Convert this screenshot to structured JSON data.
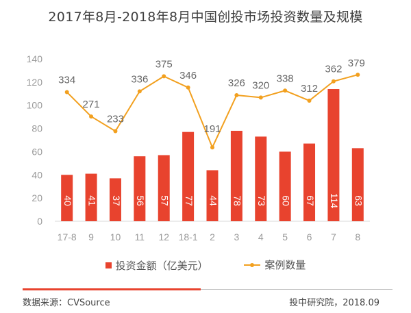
{
  "chart_data": {
    "type": "bar",
    "title": "2017年8月-2018年8月中国创投市场投资数量及规模",
    "categories": [
      "17-8",
      "9",
      "10",
      "11",
      "12",
      "18-1",
      "2",
      "3",
      "4",
      "5",
      "6",
      "7",
      "8"
    ],
    "series": [
      {
        "name": "投资金额（亿美元）",
        "type": "bar",
        "values": [
          40,
          41,
          37,
          56,
          57,
          77,
          44,
          78,
          73,
          60,
          67,
          114,
          63
        ]
      },
      {
        "name": "案例数量",
        "type": "line",
        "values": [
          334,
          271,
          233,
          336,
          375,
          346,
          191,
          326,
          320,
          338,
          312,
          362,
          379
        ]
      }
    ],
    "yticks": [
      0,
      20,
      40,
      60,
      80,
      100,
      120,
      140
    ],
    "ylim": [
      0,
      140
    ],
    "line_ylim": [
      0,
      420
    ],
    "grid": false,
    "legend": "bottom"
  },
  "colors": {
    "bar": "#e8432e",
    "line": "#f2a01f",
    "axis_text": "#999999",
    "bar_label": "#ffffff",
    "line_label": "#666666",
    "footer_red": "#e8432e"
  },
  "footer": {
    "source": "数据来源：CVSource",
    "credit": "投中研究院，2018.09"
  }
}
